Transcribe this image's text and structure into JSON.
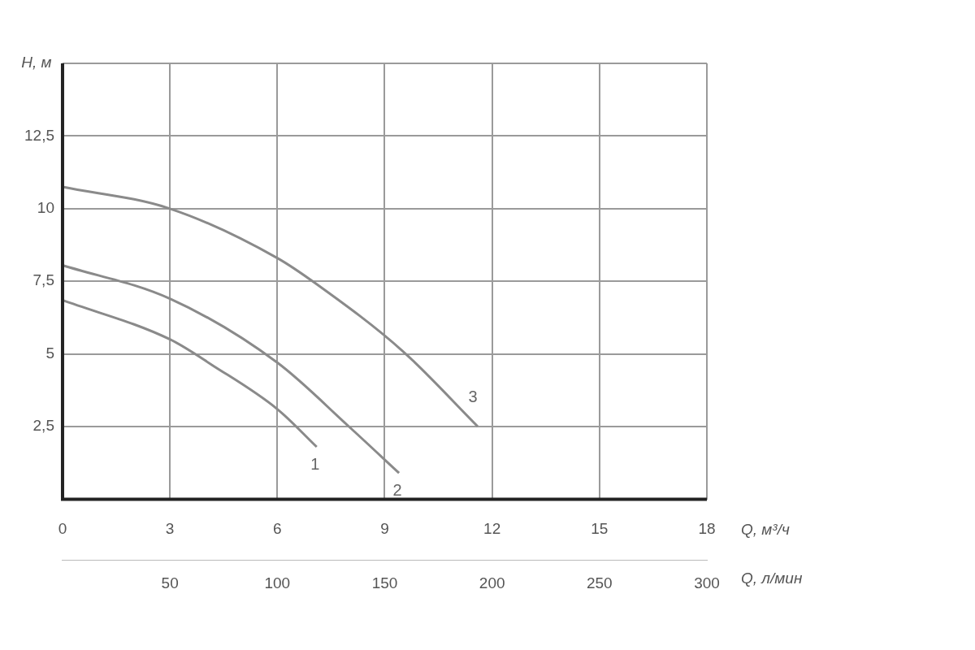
{
  "chart_data": {
    "type": "line",
    "xlabel": "Q, м³/ч",
    "x2label": "Q, л/мин",
    "ylabel": "H, м",
    "xlim": [
      0,
      18
    ],
    "xticks": [
      0,
      3,
      6,
      9,
      12,
      15,
      18
    ],
    "x2lim": [
      0,
      300
    ],
    "x2ticks": [
      50,
      100,
      150,
      200,
      250,
      300
    ],
    "ylim": [
      0,
      15
    ],
    "yticks": [
      {
        "value": 0,
        "label": null
      },
      {
        "value": 2.5,
        "label": "2,5"
      },
      {
        "value": 5,
        "label": "5"
      },
      {
        "value": 7.5,
        "label": "7,5"
      },
      {
        "value": 10,
        "label": "10"
      },
      {
        "value": 12.5,
        "label": "12,5"
      },
      {
        "value": 15,
        "label": null
      }
    ],
    "grid": true,
    "legend": false,
    "marker": "none",
    "line_style": "solid",
    "series": [
      {
        "name": "1",
        "color": "#8a8a8a",
        "x": [
          0,
          3,
          4.2,
          6,
          7.1
        ],
        "values": [
          6.85,
          5.5,
          4.6,
          3.1,
          1.8
        ]
      },
      {
        "name": "2",
        "color": "#8a8a8a",
        "x": [
          0,
          3,
          6,
          8,
          9.4
        ],
        "values": [
          8.05,
          6.9,
          4.7,
          2.5,
          0.9
        ]
      },
      {
        "name": "3",
        "color": "#8a8a8a",
        "x": [
          0,
          3,
          6,
          7.1,
          9.5,
          11.6
        ],
        "values": [
          10.75,
          10,
          8.3,
          7.4,
          5.1,
          2.5
        ]
      }
    ]
  }
}
